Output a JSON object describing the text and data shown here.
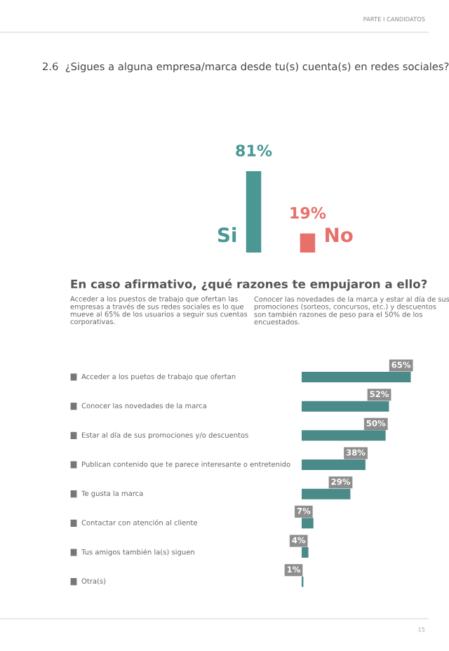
{
  "chart_data": [
    {
      "type": "bar",
      "title": "2.6  ¿Sigues a alguna empresa/marca desde tu(s) cuenta(s) en redes sociales?",
      "categories": [
        "Si",
        "No"
      ],
      "values": [
        81,
        19
      ],
      "colors": [
        "#4a9793",
        "#e8706b"
      ],
      "value_labels": [
        "81%",
        "19%"
      ],
      "annotations": [
        "PARTE I CANDIDATOS",
        "15"
      ]
    },
    {
      "type": "bar",
      "orientation": "horizontal",
      "title": "En caso afirmativo, ¿qué razones te empujaron a ello?",
      "categories": [
        "Acceder a los puetos de trabajo que ofertan",
        "Conocer las novedades de la marca",
        "Estar al día de sus promociones y/o descuentos",
        "Publican contenido que te parece interesante o entretenido",
        "Te gusta la marca",
        "Contactar con atención al cliente",
        "Tus amigos también la(s) siguen",
        "Otra(s)"
      ],
      "values": [
        65,
        52,
        50,
        38,
        29,
        7,
        4,
        1
      ],
      "color": "#4a8a88",
      "value_labels": [
        "65%",
        "52%",
        "50%",
        "38%",
        "29%",
        "7%",
        "4%",
        "1%"
      ],
      "annotations": [
        "Acceder a los puestos de trabajo que ofertan las\nempresas a través de sus redes sociales es lo que\nmueve al 65% de los usuarios a seguir sus cuentas\ncorporativas.",
        "Conocer las novedades de la marca y estar al día de sus\npromociones (sorteos, concursos, etc.) y descuentos\nson también razones de peso para el 50% de los\nencuestados."
      ]
    }
  ]
}
